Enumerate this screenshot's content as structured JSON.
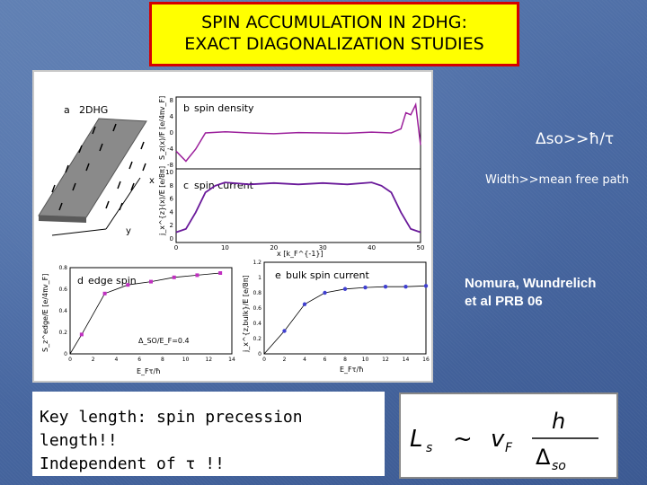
{
  "slide": {
    "title_line1": "SPIN ACCUMULATION IN 2DHG:",
    "title_line2": "EXACT DIAGONALIZATION STUDIES",
    "note_delta": "Δso>>ħ/τ",
    "note_width": "Width>>mean free path",
    "ref_line1": "Nomura, Wundrelich",
    "ref_line2": "et al PRB 06",
    "key_line1": "Key length: spin precession length!!",
    "key_line2": "Independent of τ !!"
  },
  "formula": {
    "lhs": "L",
    "lhs_sub": "s",
    "rel": "~",
    "v": "v",
    "v_sub": "F",
    "num": "h",
    "den": "Δ",
    "den_sub": "so"
  },
  "panels": {
    "a": {
      "tag": "a",
      "label": "2DHG",
      "x_axis": "x",
      "y_axis": "y"
    },
    "b": {
      "tag": "b",
      "label": "spin density",
      "ylabel": "S_z(x)/F [e/4πv_F]",
      "yticks": [
        "8",
        "4",
        "0",
        "-4",
        "-8"
      ]
    },
    "c": {
      "tag": "c",
      "label": "spin current",
      "ylabel": "j_x^{z}(x)/E [e/8π]",
      "yticks": [
        "10",
        "8",
        "6",
        "4",
        "2",
        "0"
      ],
      "xticks": [
        "0",
        "10",
        "20",
        "30",
        "40",
        "50"
      ],
      "xlabel": "x [k_F^{-1}]"
    },
    "d": {
      "tag": "d",
      "label": "edge spin",
      "ylabel": "S_z^edge/E [e/4πv_F]",
      "xlabel": "E_Fτ/ħ",
      "annotation": "Δ_SO/E_F=0.4",
      "yticks": [
        "0.8",
        "0.6",
        "0.4",
        "0.2",
        "0"
      ],
      "xticks": [
        "0",
        "2",
        "4",
        "6",
        "8",
        "10",
        "12",
        "14"
      ]
    },
    "e": {
      "tag": "e",
      "label": "bulk spin current",
      "ylabel": "j_x^{z,bulk}/E [e/8π]",
      "xlabel": "E_Fτ/ħ",
      "yticks": [
        "1.2",
        "1",
        "0.8",
        "0.6",
        "0.4",
        "0.2",
        "0"
      ],
      "xticks": [
        "0",
        "2",
        "4",
        "6",
        "8",
        "10",
        "12",
        "14",
        "16"
      ]
    }
  },
  "chart_data": [
    {
      "type": "line",
      "title": "spin density",
      "x": [
        0,
        2,
        4,
        6,
        10,
        15,
        20,
        25,
        30,
        35,
        40,
        44,
        46,
        47,
        48,
        49,
        50
      ],
      "y": [
        -4.5,
        -7,
        -4,
        0,
        0.3,
        0,
        -0.2,
        0.1,
        0,
        -0.1,
        0.2,
        0,
        1,
        5,
        4.5,
        7,
        -3
      ],
      "xlim": [
        0,
        50
      ],
      "ylim": [
        -8,
        8
      ]
    },
    {
      "type": "line",
      "title": "spin current",
      "x": [
        0,
        2,
        4,
        6,
        8,
        10,
        15,
        20,
        25,
        30,
        35,
        40,
        42,
        44,
        46,
        48,
        50
      ],
      "y": [
        1,
        1.5,
        4,
        7,
        8,
        8.5,
        8.2,
        8.4,
        8.2,
        8.4,
        8.2,
        8.5,
        8,
        7,
        4,
        1.5,
        1
      ],
      "xlim": [
        0,
        50
      ],
      "ylim": [
        0,
        10
      ]
    },
    {
      "type": "scatter",
      "title": "edge spin",
      "xlim": [
        0,
        14
      ],
      "ylim": [
        0,
        0.8
      ],
      "x": [
        1,
        3,
        5,
        7,
        9,
        11,
        13
      ],
      "y": [
        0.18,
        0.56,
        0.64,
        0.67,
        0.71,
        0.73,
        0.75
      ]
    },
    {
      "type": "scatter",
      "title": "bulk spin current",
      "xlim": [
        0,
        16
      ],
      "ylim": [
        0,
        1.2
      ],
      "x": [
        2,
        4,
        6,
        8,
        10,
        12,
        14,
        16
      ],
      "y": [
        0.3,
        0.65,
        0.8,
        0.85,
        0.87,
        0.88,
        0.88,
        0.89
      ]
    }
  ]
}
